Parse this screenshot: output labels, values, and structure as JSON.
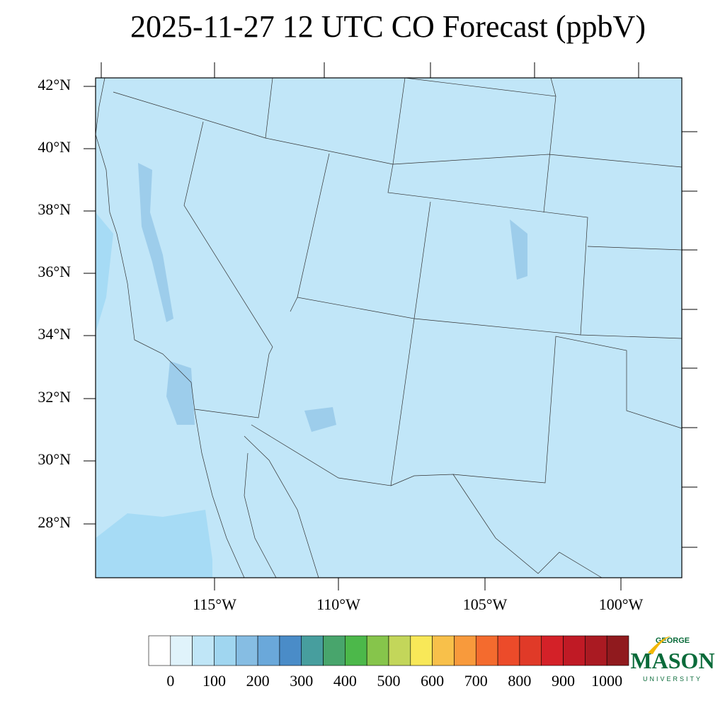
{
  "title": "2025-11-27 12 UTC CO Forecast (ppbV)",
  "map": {
    "lat_labels": [
      "42°N",
      "40°N",
      "38°N",
      "36°N",
      "34°N",
      "32°N",
      "30°N",
      "28°N"
    ],
    "lon_labels": [
      "115°W",
      "110°W",
      "105°W",
      "100°W"
    ],
    "background": "#c1e6f8"
  },
  "colorbar": {
    "colors": [
      "#ffffff",
      "#e0f3fb",
      "#c0e6f7",
      "#a0d6f0",
      "#86bde3",
      "#6aa8da",
      "#4a8cc8",
      "#479e9e",
      "#48a56c",
      "#4cb84a",
      "#86c54b",
      "#c3d65a",
      "#f8e858",
      "#f8c04a",
      "#f89a3c",
      "#f46b2e",
      "#ec4b2a",
      "#e03a28",
      "#d42128",
      "#c01a25",
      "#aa1a22",
      "#901a1e"
    ],
    "ticks": [
      0,
      100,
      200,
      300,
      400,
      500,
      600,
      700,
      800,
      900,
      1000
    ]
  },
  "logo": {
    "top": "GEORGE",
    "name": "MASON",
    "bottom": "UNIVERSITY"
  }
}
